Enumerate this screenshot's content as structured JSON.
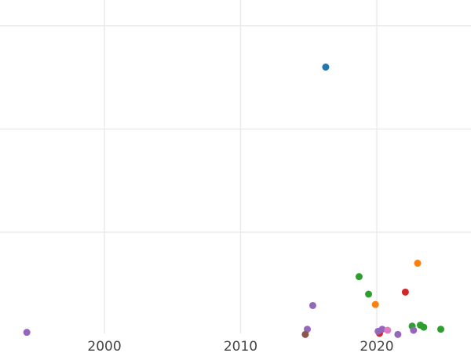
{
  "chart_data": {
    "type": "scatter",
    "title": "",
    "xlabel": "",
    "ylabel": "",
    "xlim": [
      1992.33,
      2026.92
    ],
    "ylim": [
      -0.17,
      3.25
    ],
    "x_ticks": [
      2000,
      2010,
      2020
    ],
    "x_tick_labels": [
      "2000",
      "2010",
      "2020"
    ],
    "y_gridlines": [
      1,
      2,
      3
    ],
    "grid": true,
    "legend": "none",
    "points": [
      {
        "x": 1994.3,
        "y": 0.03,
        "color": "#9467bd"
      },
      {
        "x": 2016.25,
        "y": 2.6,
        "color": "#1f77b4"
      },
      {
        "x": 2023.0,
        "y": 0.7,
        "color": "#ff7f0e"
      },
      {
        "x": 2018.7,
        "y": 0.57,
        "color": "#2ca02c"
      },
      {
        "x": 2019.4,
        "y": 0.4,
        "color": "#2ca02c"
      },
      {
        "x": 2022.1,
        "y": 0.42,
        "color": "#d62728"
      },
      {
        "x": 2019.9,
        "y": 0.3,
        "color": "#ff7f0e"
      },
      {
        "x": 2015.3,
        "y": 0.29,
        "color": "#9467bd"
      },
      {
        "x": 2014.9,
        "y": 0.06,
        "color": "#9467bd"
      },
      {
        "x": 2014.75,
        "y": 0.01,
        "color": "#8c564b"
      },
      {
        "x": 2020.2,
        "y": 0.02,
        "color": "#d62728"
      },
      {
        "x": 2020.1,
        "y": 0.04,
        "color": "#9467bd"
      },
      {
        "x": 2020.4,
        "y": 0.06,
        "color": "#9467bd"
      },
      {
        "x": 2020.8,
        "y": 0.05,
        "color": "#e377c2"
      },
      {
        "x": 2021.55,
        "y": 0.01,
        "color": "#9467bd"
      },
      {
        "x": 2022.6,
        "y": 0.09,
        "color": "#2ca02c"
      },
      {
        "x": 2022.7,
        "y": 0.05,
        "color": "#9467bd"
      },
      {
        "x": 2023.2,
        "y": 0.1,
        "color": "#2ca02c"
      },
      {
        "x": 2023.45,
        "y": 0.08,
        "color": "#2ca02c"
      },
      {
        "x": 2024.7,
        "y": 0.06,
        "color": "#2ca02c"
      }
    ]
  }
}
